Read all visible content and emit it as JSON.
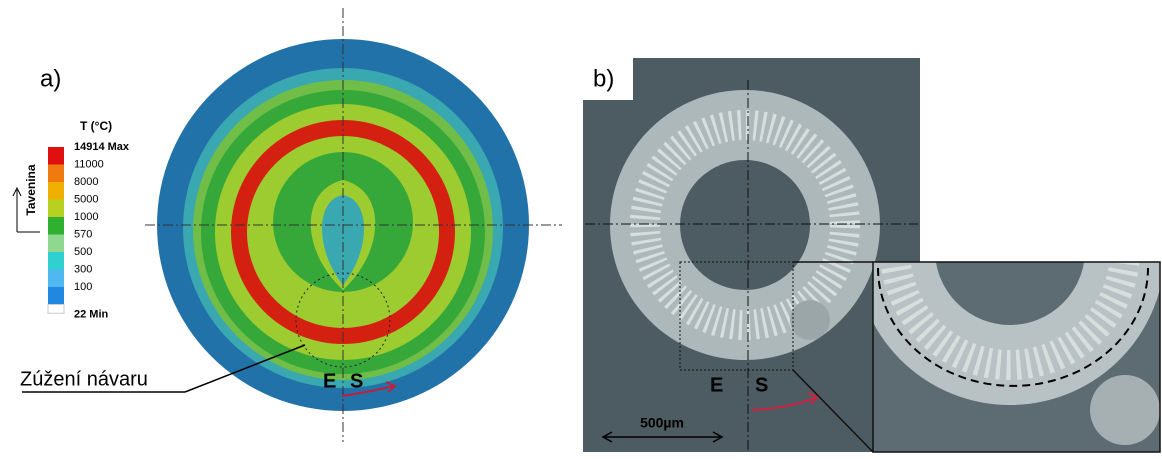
{
  "panel_a": {
    "label": "a)",
    "legend": {
      "title": "T (°C)",
      "side_label": "Tavenina",
      "labels": [
        "14914 Max",
        "11000",
        "8000",
        "5000",
        "1000",
        "570",
        "500",
        "300",
        "100",
        "22 Min"
      ],
      "colors": [
        "#e01010",
        "#f07a10",
        "#f0b000",
        "#b8d020",
        "#30b030",
        "#90d890",
        "#30d0d0",
        "#50b8f0",
        "#2088e0"
      ]
    },
    "annotation": "Zúžení návaru",
    "marker_e": "E",
    "marker_s": "S"
  },
  "panel_b": {
    "label": "b)",
    "marker_e": "E",
    "marker_s": "S",
    "scale_bar": "500µm"
  }
}
